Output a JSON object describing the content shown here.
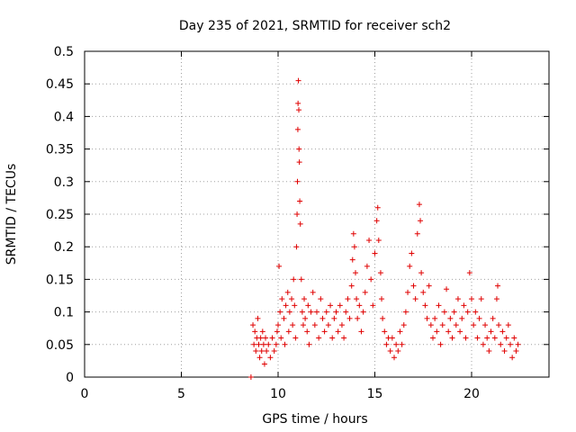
{
  "chart_data": {
    "type": "scatter",
    "title": "Day 235 of 2021, SRMTID for receiver sch2",
    "xlabel": "GPS time / hours",
    "ylabel": "SRMTID / TECUs",
    "xlim": [
      0,
      24
    ],
    "ylim": [
      0,
      0.5
    ],
    "x_ticks": [
      "0",
      "5",
      "10",
      "15",
      "20"
    ],
    "y_ticks": [
      "0",
      "0.05",
      "0.1",
      "0.15",
      "0.2",
      "0.25",
      "0.3",
      "0.35",
      "0.4",
      "0.45",
      "0.5"
    ],
    "grid": true,
    "marker": "+",
    "color": "#e00000",
    "series": [
      {
        "name": "sch2",
        "points": [
          [
            8.6,
            0.0
          ],
          [
            8.7,
            0.08
          ],
          [
            8.75,
            0.05
          ],
          [
            8.8,
            0.07
          ],
          [
            8.85,
            0.04
          ],
          [
            8.9,
            0.06
          ],
          [
            8.95,
            0.09
          ],
          [
            9.0,
            0.05
          ],
          [
            9.05,
            0.03
          ],
          [
            9.1,
            0.06
          ],
          [
            9.15,
            0.04
          ],
          [
            9.2,
            0.07
          ],
          [
            9.25,
            0.05
          ],
          [
            9.3,
            0.02
          ],
          [
            9.35,
            0.06
          ],
          [
            9.4,
            0.04
          ],
          [
            9.5,
            0.05
          ],
          [
            9.6,
            0.03
          ],
          [
            9.7,
            0.06
          ],
          [
            9.8,
            0.04
          ],
          [
            9.9,
            0.05
          ],
          [
            9.95,
            0.07
          ],
          [
            10.0,
            0.08
          ],
          [
            10.05,
            0.17
          ],
          [
            10.1,
            0.1
          ],
          [
            10.15,
            0.06
          ],
          [
            10.2,
            0.12
          ],
          [
            10.3,
            0.09
          ],
          [
            10.35,
            0.05
          ],
          [
            10.4,
            0.11
          ],
          [
            10.5,
            0.13
          ],
          [
            10.55,
            0.07
          ],
          [
            10.6,
            0.1
          ],
          [
            10.7,
            0.12
          ],
          [
            10.75,
            0.08
          ],
          [
            10.8,
            0.15
          ],
          [
            10.85,
            0.11
          ],
          [
            10.9,
            0.06
          ],
          [
            10.95,
            0.2
          ],
          [
            10.98,
            0.25
          ],
          [
            11.0,
            0.3
          ],
          [
            11.02,
            0.38
          ],
          [
            11.03,
            0.42
          ],
          [
            11.05,
            0.455
          ],
          [
            11.07,
            0.41
          ],
          [
            11.08,
            0.35
          ],
          [
            11.1,
            0.33
          ],
          [
            11.12,
            0.27
          ],
          [
            11.15,
            0.235
          ],
          [
            11.2,
            0.15
          ],
          [
            11.25,
            0.1
          ],
          [
            11.3,
            0.08
          ],
          [
            11.35,
            0.12
          ],
          [
            11.4,
            0.09
          ],
          [
            11.5,
            0.07
          ],
          [
            11.55,
            0.11
          ],
          [
            11.6,
            0.05
          ],
          [
            11.7,
            0.1
          ],
          [
            11.8,
            0.13
          ],
          [
            11.9,
            0.08
          ],
          [
            12.0,
            0.1
          ],
          [
            12.1,
            0.06
          ],
          [
            12.2,
            0.12
          ],
          [
            12.3,
            0.09
          ],
          [
            12.4,
            0.07
          ],
          [
            12.5,
            0.1
          ],
          [
            12.6,
            0.08
          ],
          [
            12.7,
            0.11
          ],
          [
            12.8,
            0.06
          ],
          [
            12.9,
            0.09
          ],
          [
            13.0,
            0.1
          ],
          [
            13.1,
            0.07
          ],
          [
            13.2,
            0.11
          ],
          [
            13.3,
            0.08
          ],
          [
            13.4,
            0.06
          ],
          [
            13.5,
            0.1
          ],
          [
            13.6,
            0.12
          ],
          [
            13.7,
            0.09
          ],
          [
            13.8,
            0.14
          ],
          [
            13.85,
            0.18
          ],
          [
            13.9,
            0.22
          ],
          [
            13.95,
            0.2
          ],
          [
            14.0,
            0.16
          ],
          [
            14.05,
            0.12
          ],
          [
            14.1,
            0.09
          ],
          [
            14.2,
            0.11
          ],
          [
            14.3,
            0.07
          ],
          [
            14.4,
            0.1
          ],
          [
            14.5,
            0.13
          ],
          [
            14.6,
            0.17
          ],
          [
            14.7,
            0.21
          ],
          [
            14.8,
            0.15
          ],
          [
            14.9,
            0.11
          ],
          [
            15.0,
            0.19
          ],
          [
            15.1,
            0.24
          ],
          [
            15.15,
            0.26
          ],
          [
            15.2,
            0.21
          ],
          [
            15.3,
            0.16
          ],
          [
            15.35,
            0.12
          ],
          [
            15.4,
            0.09
          ],
          [
            15.5,
            0.07
          ],
          [
            15.6,
            0.05
          ],
          [
            15.7,
            0.06
          ],
          [
            15.8,
            0.04
          ],
          [
            15.9,
            0.06
          ],
          [
            16.0,
            0.03
          ],
          [
            16.1,
            0.05
          ],
          [
            16.2,
            0.04
          ],
          [
            16.3,
            0.07
          ],
          [
            16.4,
            0.05
          ],
          [
            16.5,
            0.08
          ],
          [
            16.6,
            0.1
          ],
          [
            16.7,
            0.13
          ],
          [
            16.8,
            0.17
          ],
          [
            16.9,
            0.19
          ],
          [
            17.0,
            0.14
          ],
          [
            17.1,
            0.12
          ],
          [
            17.2,
            0.22
          ],
          [
            17.3,
            0.265
          ],
          [
            17.35,
            0.24
          ],
          [
            17.4,
            0.16
          ],
          [
            17.5,
            0.13
          ],
          [
            17.6,
            0.11
          ],
          [
            17.7,
            0.09
          ],
          [
            17.8,
            0.14
          ],
          [
            17.9,
            0.08
          ],
          [
            18.0,
            0.06
          ],
          [
            18.1,
            0.09
          ],
          [
            18.2,
            0.07
          ],
          [
            18.3,
            0.11
          ],
          [
            18.4,
            0.05
          ],
          [
            18.5,
            0.08
          ],
          [
            18.6,
            0.1
          ],
          [
            18.7,
            0.135
          ],
          [
            18.8,
            0.07
          ],
          [
            18.9,
            0.09
          ],
          [
            19.0,
            0.06
          ],
          [
            19.1,
            0.1
          ],
          [
            19.2,
            0.08
          ],
          [
            19.3,
            0.12
          ],
          [
            19.4,
            0.07
          ],
          [
            19.5,
            0.09
          ],
          [
            19.6,
            0.11
          ],
          [
            19.7,
            0.06
          ],
          [
            19.8,
            0.1
          ],
          [
            19.9,
            0.16
          ],
          [
            20.0,
            0.12
          ],
          [
            20.1,
            0.08
          ],
          [
            20.2,
            0.1
          ],
          [
            20.3,
            0.06
          ],
          [
            20.4,
            0.09
          ],
          [
            20.5,
            0.12
          ],
          [
            20.6,
            0.05
          ],
          [
            20.7,
            0.08
          ],
          [
            20.8,
            0.06
          ],
          [
            20.9,
            0.04
          ],
          [
            21.0,
            0.07
          ],
          [
            21.1,
            0.09
          ],
          [
            21.2,
            0.06
          ],
          [
            21.3,
            0.12
          ],
          [
            21.35,
            0.14
          ],
          [
            21.4,
            0.08
          ],
          [
            21.5,
            0.05
          ],
          [
            21.6,
            0.07
          ],
          [
            21.7,
            0.04
          ],
          [
            21.8,
            0.06
          ],
          [
            21.9,
            0.08
          ],
          [
            22.0,
            0.05
          ],
          [
            22.1,
            0.03
          ],
          [
            22.2,
            0.06
          ],
          [
            22.3,
            0.04
          ],
          [
            22.4,
            0.05
          ]
        ]
      }
    ]
  }
}
